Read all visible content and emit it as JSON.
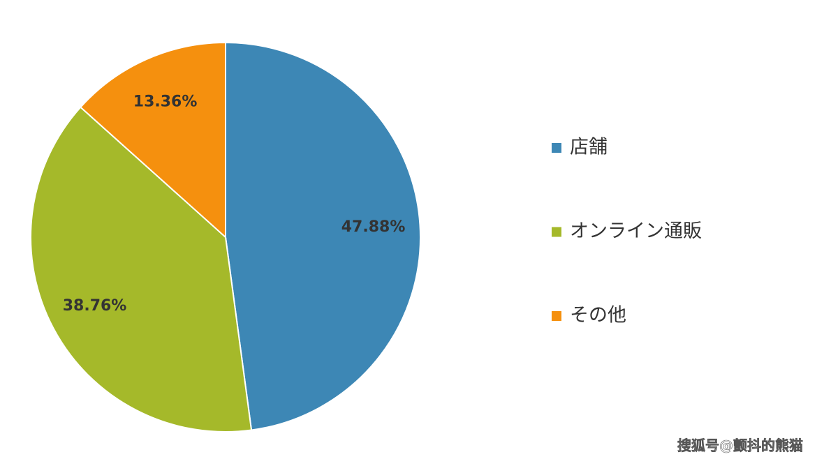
{
  "chart_data": {
    "type": "pie",
    "categories": [
      "店舗",
      "オンライン通販",
      "その他"
    ],
    "values": [
      47.88,
      38.76,
      13.36
    ],
    "value_labels": [
      "47.88%",
      "38.76%",
      "13.36%"
    ],
    "colors": [
      "#3d87b5",
      "#a5b92a",
      "#f5900e"
    ],
    "legend": "right"
  },
  "watermark": "搜狐号@颤抖的熊猫"
}
